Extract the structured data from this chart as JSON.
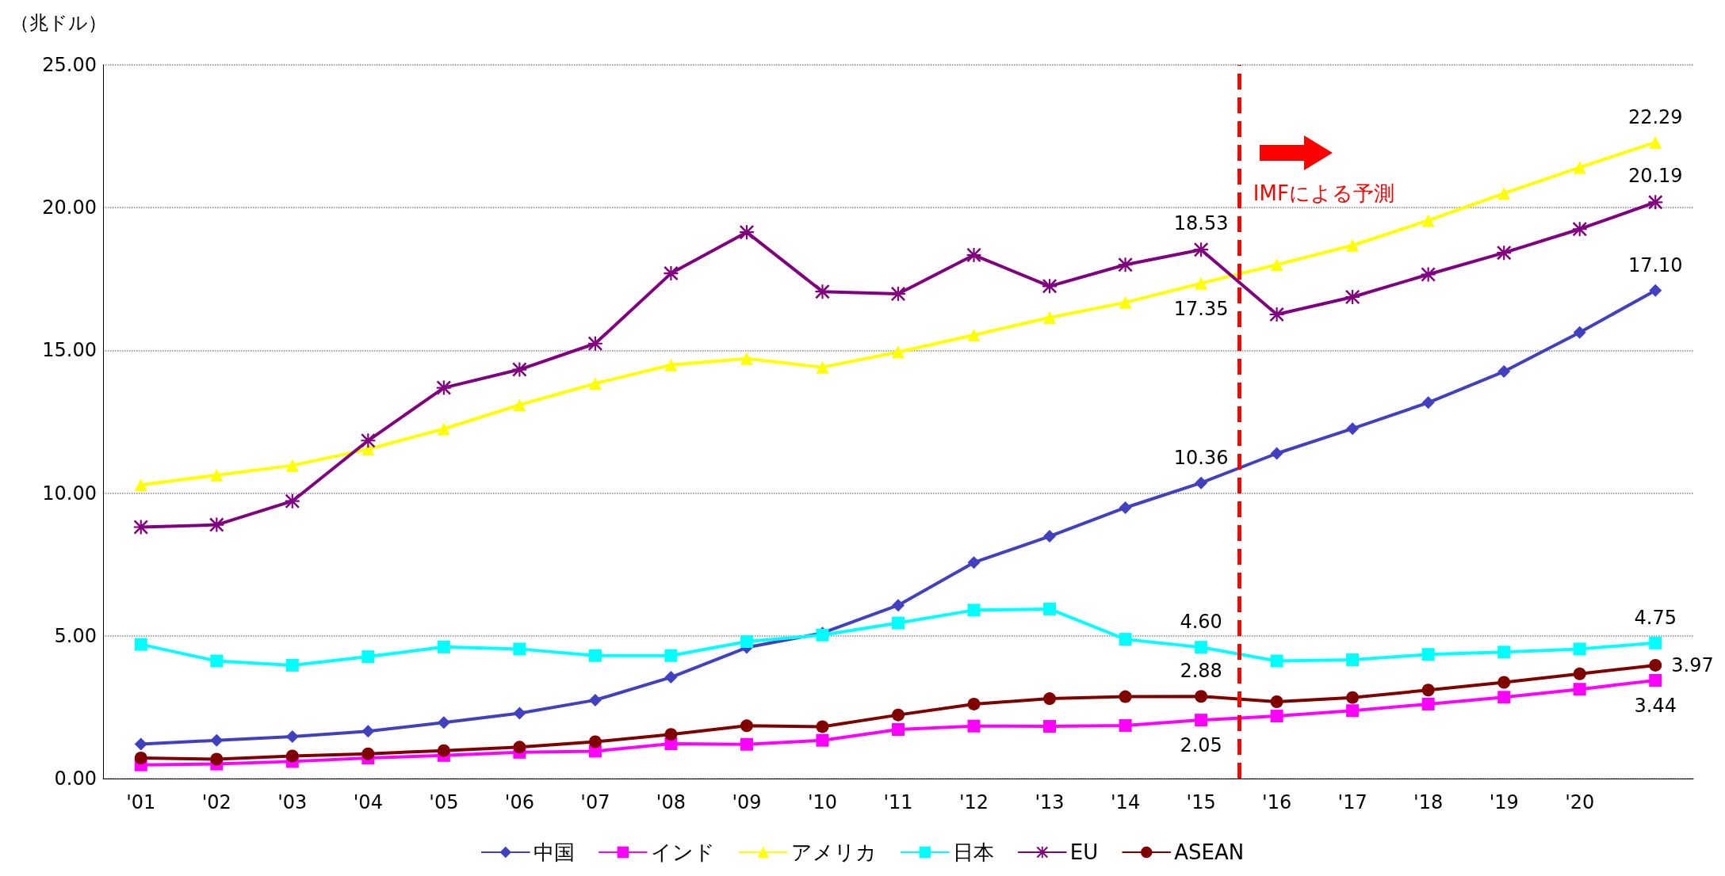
{
  "chart_data": {
    "type": "line",
    "ylabel": "（兆ドル）",
    "x": [
      2001,
      2002,
      2003,
      2004,
      2005,
      2006,
      2007,
      2008,
      2009,
      2010,
      2011,
      2012,
      2013,
      2014,
      2015,
      2016,
      2017,
      2018,
      2019,
      2020,
      2021
    ],
    "xlim": [
      2000.5,
      2021.5
    ],
    "xticks": [
      {
        "value": 2001,
        "label": "'01"
      },
      {
        "value": 2002,
        "label": "'02"
      },
      {
        "value": 2003,
        "label": "'03"
      },
      {
        "value": 2004,
        "label": "'04"
      },
      {
        "value": 2005,
        "label": "'05"
      },
      {
        "value": 2006,
        "label": "'06"
      },
      {
        "value": 2007,
        "label": "'07"
      },
      {
        "value": 2008,
        "label": "'08"
      },
      {
        "value": 2009,
        "label": "'09"
      },
      {
        "value": 2010,
        "label": "'10"
      },
      {
        "value": 2011,
        "label": "'11"
      },
      {
        "value": 2012,
        "label": "'12"
      },
      {
        "value": 2013,
        "label": "'13"
      },
      {
        "value": 2014,
        "label": "'14"
      },
      {
        "value": 2015,
        "label": "'15"
      },
      {
        "value": 2016,
        "label": "'16"
      },
      {
        "value": 2017,
        "label": "'17"
      },
      {
        "value": 2018,
        "label": "'18"
      },
      {
        "value": 2019,
        "label": "'19"
      },
      {
        "value": 2020,
        "label": "'20"
      }
    ],
    "ylim": [
      0,
      25
    ],
    "yticks": [
      {
        "value": 0,
        "label": "0.00"
      },
      {
        "value": 5,
        "label": "5.00"
      },
      {
        "value": 10,
        "label": "10.00"
      },
      {
        "value": 15,
        "label": "15.00"
      },
      {
        "value": 20,
        "label": "20.00"
      },
      {
        "value": 25,
        "label": "25.00"
      }
    ],
    "grid": "y",
    "legend": "bottom",
    "series": [
      {
        "name": "中国",
        "color": "#4040c0",
        "marker": "diamond",
        "values": [
          1.21,
          1.34,
          1.47,
          1.66,
          1.96,
          2.29,
          2.75,
          3.55,
          4.59,
          5.1,
          6.07,
          7.57,
          8.49,
          9.49,
          10.36,
          11.39,
          12.26,
          13.17,
          14.26,
          15.63,
          17.1
        ],
        "value_labels": [
          null,
          null,
          null,
          null,
          null,
          null,
          null,
          null,
          null,
          null,
          null,
          null,
          null,
          null,
          "10.36",
          null,
          null,
          null,
          null,
          null,
          "17.10"
        ]
      },
      {
        "name": "インド",
        "color": "#ff00ff",
        "marker": "square",
        "values": [
          0.48,
          0.51,
          0.6,
          0.72,
          0.81,
          0.92,
          0.96,
          1.22,
          1.2,
          1.34,
          1.72,
          1.84,
          1.83,
          1.86,
          2.05,
          2.19,
          2.38,
          2.61,
          2.85,
          3.13,
          3.44
        ],
        "value_labels": [
          null,
          null,
          null,
          null,
          null,
          null,
          null,
          null,
          null,
          null,
          null,
          null,
          null,
          null,
          "2.05",
          null,
          null,
          null,
          null,
          null,
          "3.44"
        ]
      },
      {
        "name": "アメリカ",
        "color": "#ffff00",
        "marker": "triangle",
        "values": [
          10.29,
          10.63,
          10.97,
          11.54,
          12.25,
          13.09,
          13.84,
          14.49,
          14.71,
          14.41,
          14.94,
          15.54,
          16.15,
          16.68,
          17.35,
          18.0,
          18.68,
          19.55,
          20.5,
          21.41,
          22.29
        ],
        "value_labels": [
          null,
          null,
          null,
          null,
          null,
          null,
          null,
          null,
          null,
          null,
          null,
          null,
          null,
          null,
          "17.35",
          null,
          null,
          null,
          null,
          null,
          "22.29"
        ]
      },
      {
        "name": "日本",
        "color": "#00ffff",
        "marker": "square",
        "values": [
          4.7,
          4.12,
          3.97,
          4.27,
          4.61,
          4.54,
          4.31,
          4.31,
          4.8,
          5.03,
          5.45,
          5.9,
          5.94,
          4.88,
          4.6,
          4.12,
          4.16,
          4.35,
          4.43,
          4.54,
          4.75
        ],
        "value_labels": [
          null,
          null,
          null,
          null,
          null,
          null,
          null,
          null,
          null,
          null,
          null,
          null,
          null,
          null,
          "4.60",
          null,
          null,
          null,
          null,
          null,
          "4.75"
        ]
      },
      {
        "name": "EU",
        "color": "#800080",
        "marker": "cross",
        "values": [
          8.81,
          8.89,
          9.72,
          11.84,
          13.69,
          14.33,
          15.24,
          17.7,
          19.14,
          17.06,
          16.98,
          18.34,
          17.25,
          18.0,
          18.53,
          16.26,
          16.87,
          17.66,
          18.42,
          19.25,
          20.19
        ],
        "value_labels": [
          null,
          null,
          null,
          null,
          null,
          null,
          null,
          null,
          null,
          null,
          null,
          null,
          null,
          null,
          "18.53",
          null,
          null,
          null,
          null,
          null,
          "20.19"
        ]
      },
      {
        "name": "ASEAN",
        "color": "#800000",
        "marker": "circle",
        "values": [
          0.72,
          0.68,
          0.79,
          0.87,
          0.98,
          1.1,
          1.29,
          1.55,
          1.85,
          1.82,
          2.23,
          2.61,
          2.8,
          2.87,
          2.88,
          2.69,
          2.84,
          3.1,
          3.37,
          3.67,
          3.97
        ],
        "value_labels": [
          null,
          null,
          null,
          null,
          null,
          null,
          null,
          null,
          null,
          null,
          null,
          null,
          null,
          null,
          "2.88",
          null,
          null,
          null,
          null,
          null,
          "3.97"
        ]
      }
    ],
    "ref_lines": [
      {
        "axis": "x",
        "value": 2015.5,
        "label": "IMFによる予測",
        "color": "#ff0000",
        "line_style": "dashed"
      }
    ]
  }
}
